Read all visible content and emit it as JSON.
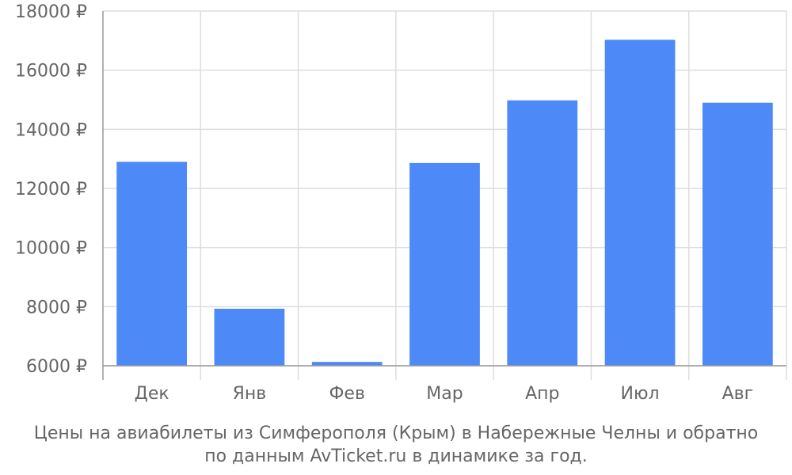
{
  "chart_data": {
    "type": "bar",
    "categories": [
      "Дек",
      "Янв",
      "Фев",
      "Мар",
      "Апр",
      "Июл",
      "Авг"
    ],
    "values": [
      12900,
      7930,
      6130,
      12860,
      14980,
      17030,
      14900
    ],
    "ylim": [
      6000,
      18000
    ],
    "yticks": [
      "6000 ₽",
      "8000 ₽",
      "10000 ₽",
      "12000 ₽",
      "14000 ₽",
      "16000 ₽",
      "18000 ₽"
    ],
    "grid": true,
    "bar_color": "#4d8af8"
  },
  "caption": {
    "line1": "Цены на авиабилеты из Симферополя (Крым) в Набережные Челны и обратно",
    "line2": "по данным AvTicket.ru в динамике за год."
  }
}
